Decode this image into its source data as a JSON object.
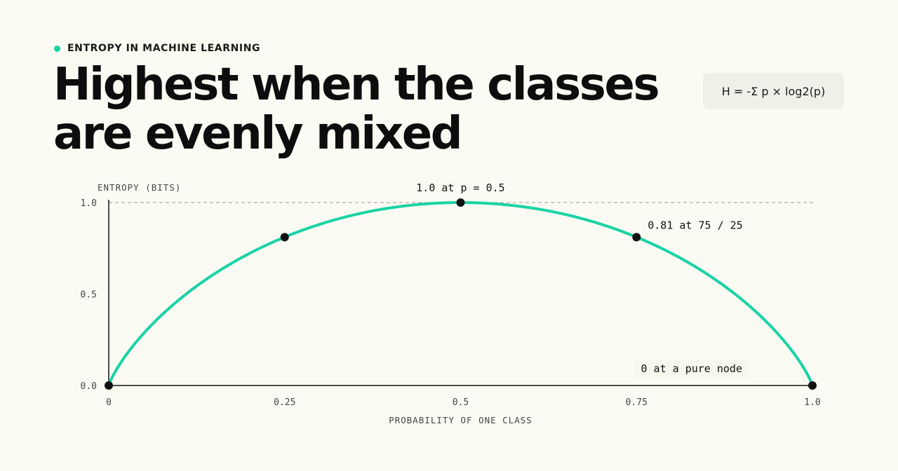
{
  "header": {
    "eyebrow": "ENTROPY IN MACHINE LEARNING",
    "title": "Highest when the classes are evenly mixed",
    "formula": "H = -Σ p × log2(p)"
  },
  "colors": {
    "accent": "#19d3a5",
    "background": "#fcfbf3",
    "ink": "#111111"
  },
  "chart_data": {
    "type": "line",
    "xlabel": "PROBABILITY OF ONE CLASS",
    "ylabel": "ENTROPY (BITS)",
    "xlim": [
      0,
      1
    ],
    "ylim": [
      0,
      1
    ],
    "x_ticks": [
      {
        "value": 0,
        "label": "0"
      },
      {
        "value": 0.25,
        "label": "0.25"
      },
      {
        "value": 0.5,
        "label": "0.5"
      },
      {
        "value": 0.75,
        "label": "0.75"
      },
      {
        "value": 1,
        "label": "1.0"
      }
    ],
    "y_ticks": [
      {
        "value": 0,
        "label": "0.0"
      },
      {
        "value": 0.5,
        "label": "0.5"
      },
      {
        "value": 1,
        "label": "1.0"
      }
    ],
    "series": [
      {
        "function": "binary_entropy",
        "domain": [
          0,
          1
        ]
      }
    ],
    "reference_lines": [
      {
        "axis": "y",
        "value": 1,
        "style": "dashed"
      }
    ],
    "points": [
      {
        "x": 0,
        "y": 0
      },
      {
        "x": 0.25,
        "y": 0.811
      },
      {
        "x": 0.5,
        "y": 1
      },
      {
        "x": 0.75,
        "y": 0.811
      },
      {
        "x": 1,
        "y": 0
      }
    ],
    "annotations": [
      {
        "text": "1.0 at p = 0.5",
        "x": 0.5,
        "y": 1
      },
      {
        "text": "0.81 at 75 / 25",
        "x": 0.75,
        "y": 0.811
      },
      {
        "text": "0 at a pure node",
        "x": 1,
        "y": 0
      }
    ],
    "grid": false,
    "legend": "none"
  }
}
